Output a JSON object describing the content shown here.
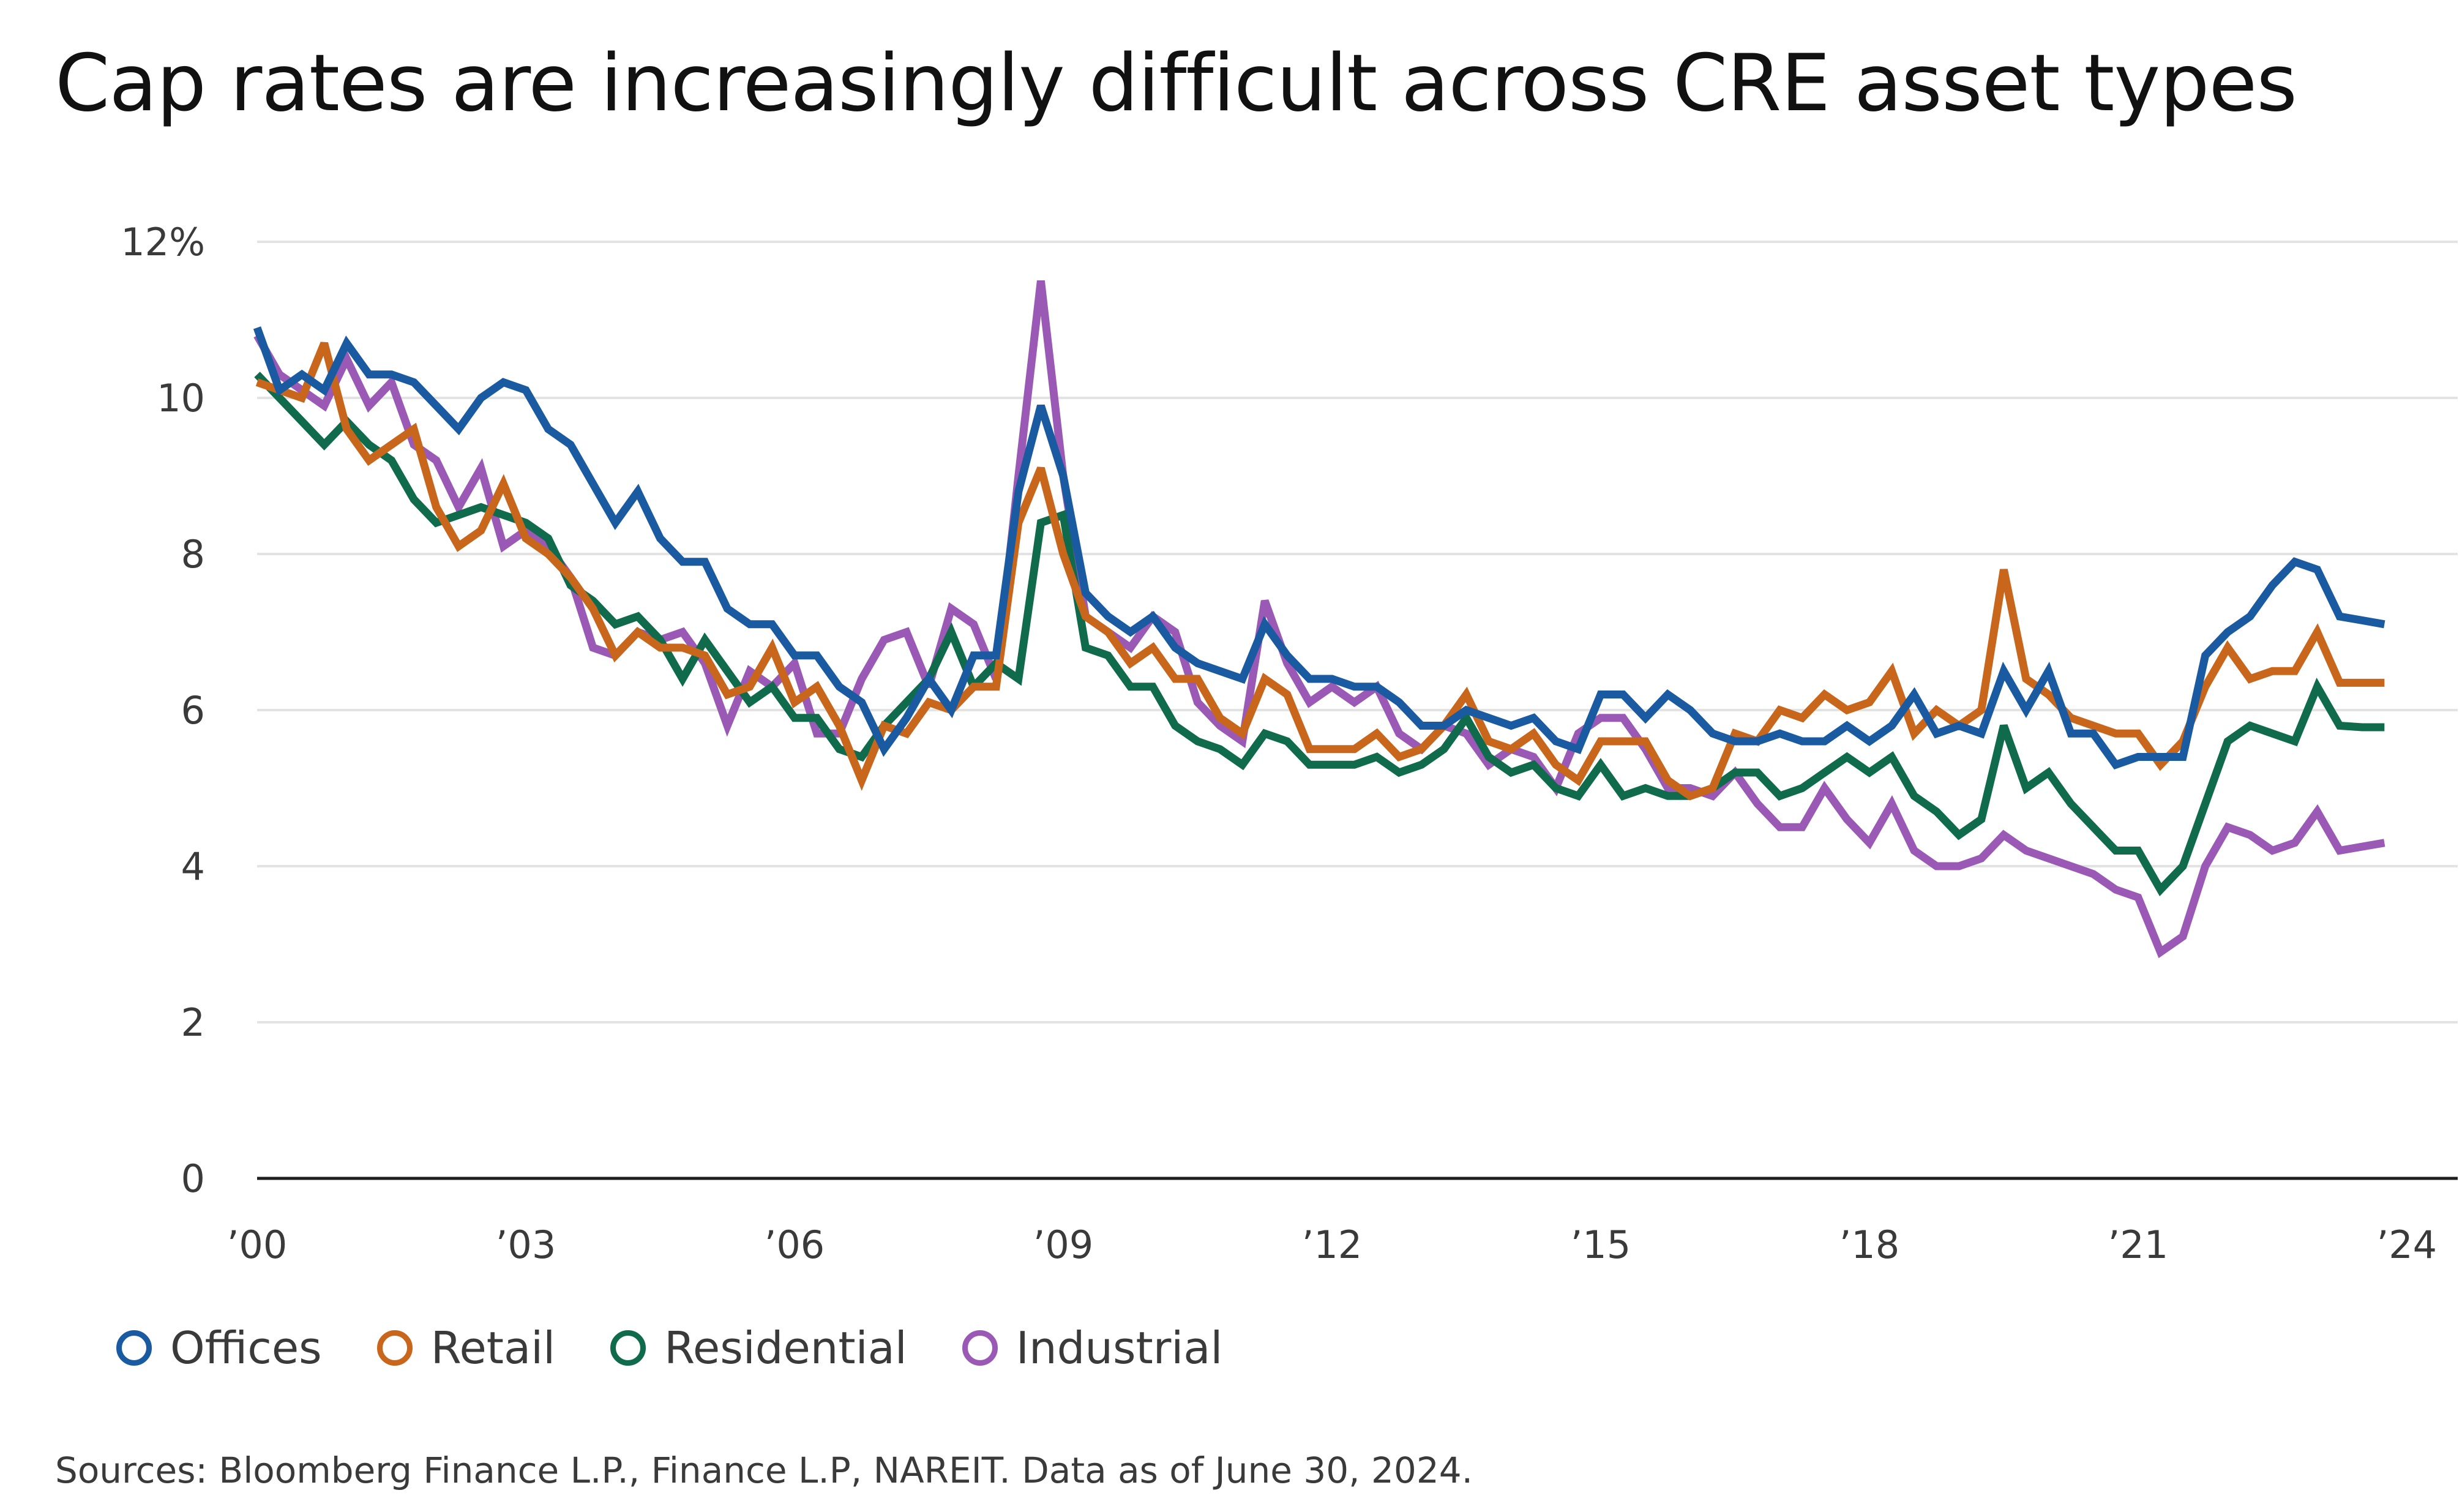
{
  "title": "Cap rates are increasingly difficult across CRE asset types",
  "source": "Sources: Bloomberg Finance L.P., Finance L.P, NAREIT. Data as of June 30, 2024.",
  "chart_data": {
    "type": "line",
    "title": "Cap rates are increasingly difficult across CRE asset types",
    "xlabel": "",
    "ylabel": "",
    "xlim": [
      2000.0,
      2024.5
    ],
    "ylim": [
      0,
      12
    ],
    "yticks": [
      {
        "value": 0,
        "label": "0"
      },
      {
        "value": 2,
        "label": "2"
      },
      {
        "value": 4,
        "label": "4"
      },
      {
        "value": 6,
        "label": "6"
      },
      {
        "value": 8,
        "label": "8"
      },
      {
        "value": 10,
        "label": "10"
      },
      {
        "value": 12,
        "label": "12%"
      }
    ],
    "xticks": [
      {
        "value": 2000,
        "label": "’00"
      },
      {
        "value": 2003,
        "label": "’03"
      },
      {
        "value": 2006,
        "label": "’06"
      },
      {
        "value": 2009,
        "label": "’09"
      },
      {
        "value": 2012,
        "label": "’12"
      },
      {
        "value": 2015,
        "label": "’15"
      },
      {
        "value": 2018,
        "label": "’18"
      },
      {
        "value": 2021,
        "label": "’21"
      },
      {
        "value": 2024,
        "label": "’24"
      }
    ],
    "grid": true,
    "legend_position": "bottom-left",
    "x_start": 2000.0,
    "x_step": 0.25,
    "series": [
      {
        "name": "Industrial",
        "color": "#9b59b6",
        "values": [
          10.8,
          10.3,
          10.1,
          9.9,
          10.5,
          9.9,
          10.2,
          9.4,
          9.2,
          8.6,
          9.1,
          8.1,
          8.3,
          8.1,
          7.7,
          6.8,
          6.7,
          7.0,
          6.9,
          7.0,
          6.6,
          5.8,
          6.5,
          6.3,
          6.6,
          5.7,
          5.7,
          6.4,
          6.9,
          7.0,
          6.3,
          7.3,
          7.1,
          6.4,
          9.0,
          11.5,
          9.0,
          7.2,
          7.0,
          6.8,
          7.2,
          7.0,
          6.1,
          5.8,
          5.6,
          7.4,
          6.6,
          6.1,
          6.3,
          6.1,
          6.3,
          5.7,
          5.5,
          5.8,
          5.7,
          5.3,
          5.5,
          5.4,
          5.0,
          5.7,
          5.9,
          5.9,
          5.5,
          5.0,
          5.0,
          4.9,
          5.2,
          4.8,
          4.5,
          4.5,
          5.0,
          4.6,
          4.3,
          4.8,
          4.2,
          4.0,
          4.0,
          4.1,
          4.4,
          4.2,
          4.1,
          4.0,
          3.9,
          3.7,
          3.6,
          2.9,
          3.1,
          4.0,
          4.5,
          4.4,
          4.2,
          4.3,
          4.7,
          4.2,
          4.25,
          4.3
        ]
      },
      {
        "name": "Residential",
        "color": "#0f6b4c",
        "values": [
          10.3,
          10.0,
          9.7,
          9.4,
          9.7,
          9.4,
          9.2,
          8.7,
          8.4,
          8.5,
          8.6,
          8.5,
          8.4,
          8.2,
          7.6,
          7.4,
          7.1,
          7.2,
          6.9,
          6.4,
          6.9,
          6.5,
          6.1,
          6.3,
          5.9,
          5.9,
          5.5,
          5.4,
          5.8,
          6.1,
          6.4,
          7.0,
          6.3,
          6.6,
          6.4,
          8.4,
          8.5,
          6.8,
          6.7,
          6.3,
          6.3,
          5.8,
          5.6,
          5.5,
          5.3,
          5.7,
          5.6,
          5.3,
          5.3,
          5.3,
          5.4,
          5.2,
          5.3,
          5.5,
          5.9,
          5.4,
          5.2,
          5.3,
          5.0,
          4.9,
          5.3,
          4.9,
          5.0,
          4.9,
          4.9,
          5.0,
          5.2,
          5.2,
          4.9,
          5.0,
          5.2,
          5.4,
          5.2,
          5.4,
          4.9,
          4.7,
          4.4,
          4.6,
          5.8,
          5.0,
          5.2,
          4.8,
          4.5,
          4.2,
          4.2,
          3.7,
          4.0,
          4.8,
          5.6,
          5.8,
          5.7,
          5.6,
          6.3,
          5.8,
          5.78,
          5.78
        ]
      },
      {
        "name": "Retail",
        "color": "#c8661b",
        "values": [
          10.2,
          10.1,
          10.0,
          10.7,
          9.6,
          9.2,
          9.4,
          9.6,
          8.6,
          8.1,
          8.3,
          8.9,
          8.2,
          8.0,
          7.7,
          7.3,
          6.7,
          7.0,
          6.8,
          6.8,
          6.7,
          6.2,
          6.3,
          6.8,
          6.1,
          6.3,
          5.8,
          5.1,
          5.8,
          5.7,
          6.1,
          6.0,
          6.3,
          6.3,
          8.4,
          9.1,
          8.0,
          7.2,
          7.0,
          6.6,
          6.8,
          6.4,
          6.4,
          5.9,
          5.7,
          6.4,
          6.2,
          5.5,
          5.5,
          5.5,
          5.7,
          5.4,
          5.5,
          5.8,
          6.2,
          5.6,
          5.5,
          5.7,
          5.3,
          5.1,
          5.6,
          5.6,
          5.6,
          5.1,
          4.9,
          5.0,
          5.7,
          5.6,
          6.0,
          5.9,
          6.2,
          6.0,
          6.1,
          6.5,
          5.7,
          6.0,
          5.8,
          6.0,
          7.8,
          6.4,
          6.2,
          5.9,
          5.8,
          5.7,
          5.7,
          5.3,
          5.6,
          6.3,
          6.8,
          6.4,
          6.5,
          6.5,
          7.0,
          6.35,
          6.35,
          6.35
        ]
      },
      {
        "name": "Offices",
        "color": "#1a5aa0",
        "values": [
          10.9,
          10.1,
          10.3,
          10.1,
          10.7,
          10.3,
          10.3,
          10.2,
          9.9,
          9.6,
          10.0,
          10.2,
          10.1,
          9.6,
          9.4,
          8.9,
          8.4,
          8.8,
          8.2,
          7.9,
          7.9,
          7.3,
          7.1,
          7.1,
          6.7,
          6.7,
          6.3,
          6.1,
          5.5,
          5.9,
          6.4,
          6.0,
          6.7,
          6.7,
          8.8,
          9.9,
          9.0,
          7.5,
          7.2,
          7.0,
          7.2,
          6.8,
          6.6,
          6.5,
          6.4,
          7.1,
          6.7,
          6.4,
          6.4,
          6.3,
          6.3,
          6.1,
          5.8,
          5.8,
          6.0,
          5.9,
          5.8,
          5.9,
          5.6,
          5.5,
          6.2,
          6.2,
          5.9,
          6.2,
          6.0,
          5.7,
          5.6,
          5.6,
          5.7,
          5.6,
          5.6,
          5.8,
          5.6,
          5.8,
          6.2,
          5.7,
          5.8,
          5.7,
          6.5,
          6.0,
          6.5,
          5.7,
          5.7,
          5.3,
          5.4,
          5.4,
          5.4,
          6.7,
          7.0,
          7.2,
          7.6,
          7.9,
          7.8,
          7.2,
          7.15,
          7.1
        ]
      }
    ],
    "legend_order": [
      "Offices",
      "Retail",
      "Residential",
      "Industrial"
    ]
  }
}
